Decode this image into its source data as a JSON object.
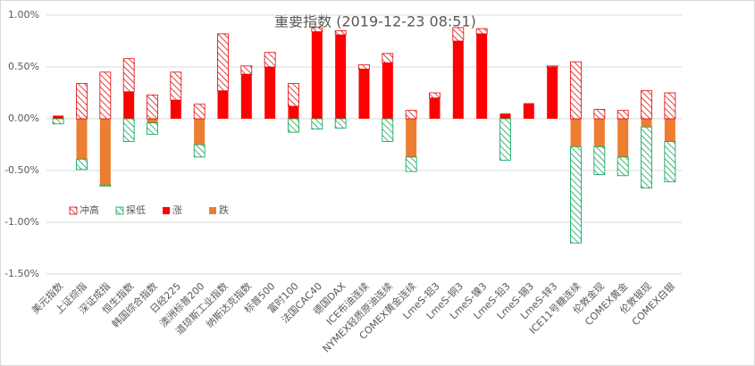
{
  "chart_data": {
    "type": "stacked-bar",
    "title": "重要指数 (2019-12-23 08:51)",
    "categories": [
      "美元指数",
      "上证综指",
      "深证成指",
      "恒生指数",
      "韩国综合指数",
      "日经225",
      "澳洲标普200",
      "道琼斯工业指数",
      "纳斯达克指数",
      "标普500",
      "富时100",
      "法国CAC40",
      "德国DAX",
      "ICE布油连续",
      "NYMEX轻质原油连续",
      "COMEX黄金连续",
      "LmeS-铝3",
      "LmeS-铜3",
      "LmeS-镍3",
      "LmeS-铅3",
      "LmeS-锡3",
      "LmeS-锌3",
      "ICE11号糖连续",
      "伦敦金现",
      "COMEX黄金",
      "伦敦银现",
      "COMEX白银"
    ],
    "series": [
      {
        "name": "冲高",
        "color": "#e00000",
        "hatched": true,
        "values": [
          null,
          0.34,
          0.45,
          0.32,
          0.23,
          0.27,
          0.14,
          0.55,
          0.08,
          0.14,
          0.22,
          0.04,
          0.04,
          0.04,
          0.09,
          0.08,
          0.05,
          0.13,
          0.05,
          null,
          null,
          0.01,
          0.55,
          0.09,
          0.08,
          0.27,
          0.25
        ]
      },
      {
        "name": "探低",
        "color": "#00a050",
        "hatched": true,
        "values": [
          -0.05,
          -0.1,
          -0.01,
          -0.22,
          -0.11,
          null,
          -0.12,
          null,
          null,
          null,
          -0.13,
          -0.1,
          -0.09,
          null,
          -0.22,
          -0.14,
          null,
          null,
          null,
          -0.4,
          null,
          null,
          -0.93,
          -0.27,
          -0.18,
          -0.59,
          -0.39
        ]
      },
      {
        "name": "涨",
        "color": "#ff0000",
        "hatched": false,
        "values": [
          0.03,
          null,
          null,
          0.26,
          null,
          0.18,
          null,
          0.27,
          0.43,
          0.5,
          0.12,
          0.84,
          0.81,
          0.48,
          0.54,
          null,
          0.2,
          0.75,
          0.82,
          0.05,
          0.15,
          0.5,
          null,
          null,
          null,
          null,
          null
        ]
      },
      {
        "name": "跌",
        "color": "#ed7d31",
        "hatched": false,
        "values": [
          null,
          -0.39,
          -0.64,
          null,
          -0.04,
          null,
          -0.25,
          null,
          null,
          null,
          null,
          null,
          null,
          null,
          null,
          -0.37,
          null,
          null,
          null,
          null,
          null,
          null,
          -0.27,
          -0.27,
          -0.37,
          -0.08,
          -0.22
        ]
      }
    ],
    "ylim": [
      -1.5,
      1.0
    ],
    "yticks": [
      {
        "value": -1.5,
        "label": "-1.50%"
      },
      {
        "value": -1.0,
        "label": "-1.00%"
      },
      {
        "value": -0.5,
        "label": "-0.50%"
      },
      {
        "value": 0,
        "label": "0.00%"
      },
      {
        "value": 0.5,
        "label": "0.50%"
      },
      {
        "value": 1.0,
        "label": "1.00%"
      }
    ],
    "grid": true,
    "legend": "lower-left"
  }
}
